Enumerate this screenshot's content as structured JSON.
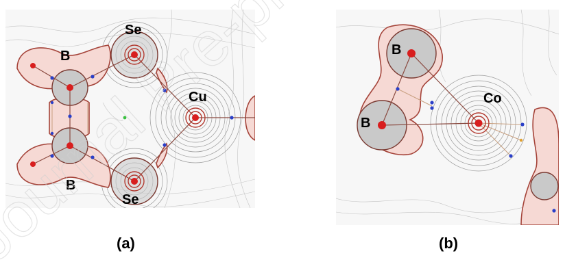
{
  "figure": {
    "panels": [
      {
        "id": "a",
        "label": "(a)",
        "atoms": [
          {
            "symbol": "Se",
            "role": "top"
          },
          {
            "symbol": "B",
            "role": "upper-left"
          },
          {
            "symbol": "Cu",
            "role": "center"
          },
          {
            "symbol": "B",
            "role": "lower-left"
          },
          {
            "symbol": "Se",
            "role": "bottom"
          }
        ]
      },
      {
        "id": "b",
        "label": "(b)",
        "atoms": [
          {
            "symbol": "B",
            "role": "upper"
          },
          {
            "symbol": "Co",
            "role": "center"
          },
          {
            "symbol": "B",
            "role": "lower"
          }
        ]
      }
    ],
    "watermark": "Journal Pre-proof"
  },
  "colors": {
    "basin_fill": "#f6d9d4",
    "basin_stroke": "#a5443a",
    "nucleus": "#d81e1e",
    "critical_point": "#2a3fc8",
    "contour": "#9a9a9a"
  }
}
